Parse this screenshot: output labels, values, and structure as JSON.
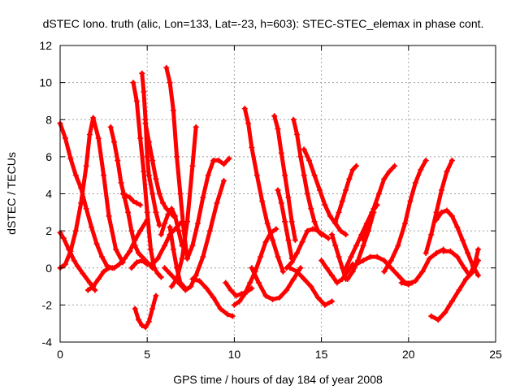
{
  "chart_data": {
    "type": "scatter",
    "title": "dSTEC Iono. truth (alic, Lon=133, Lat=-23, h=603): STEC-STEC_elemax in phase cont.",
    "xlabel": "GPS time / hours of day 184 of year 2008",
    "ylabel": "dSTEC  / TECUs",
    "xlim": [
      0,
      25
    ],
    "ylim": [
      -4,
      12
    ],
    "xticks": [
      0,
      5,
      10,
      15,
      20,
      25
    ],
    "yticks": [
      -4,
      -2,
      0,
      2,
      4,
      6,
      8,
      10,
      12
    ],
    "grid": true,
    "marker": "+",
    "color": "#ff0000",
    "series": [
      {
        "x": [
          0.0,
          0.3,
          0.6,
          0.9,
          1.2,
          1.5,
          1.8,
          2.1,
          2.4,
          2.7,
          3.0
        ],
        "y": [
          7.8,
          7.0,
          5.9,
          5.0,
          4.3,
          3.2,
          2.2,
          1.3,
          0.6,
          0.1,
          0.0
        ]
      },
      {
        "x": [
          0.0,
          0.2,
          0.5,
          0.8,
          1.0,
          1.3,
          1.7,
          2.0
        ],
        "y": [
          1.9,
          1.6,
          1.0,
          0.4,
          0.1,
          -0.3,
          -0.8,
          -1.2
        ]
      },
      {
        "x": [
          0.0,
          0.3,
          0.6,
          0.9,
          1.2,
          1.5,
          1.7,
          1.9,
          2.2,
          2.5,
          2.8,
          3.2,
          3.6
        ],
        "y": [
          0.0,
          0.2,
          0.9,
          2.0,
          3.5,
          5.5,
          7.2,
          8.1,
          7.0,
          5.0,
          2.8,
          1.0,
          0.3
        ]
      },
      {
        "x": [
          1.6,
          1.9,
          2.2,
          2.5,
          2.8,
          3.1,
          3.4,
          3.7,
          4.0,
          4.3,
          4.6,
          5.0
        ],
        "y": [
          -1.2,
          -1.0,
          -0.6,
          -0.2,
          0.0,
          0.0,
          0.2,
          0.5,
          0.9,
          1.5,
          2.0,
          2.6
        ]
      },
      {
        "x": [
          2.9,
          3.1,
          3.3,
          3.5,
          3.7,
          3.9,
          4.1,
          4.3,
          4.5,
          4.7,
          5.0,
          5.3
        ],
        "y": [
          7.6,
          6.8,
          5.8,
          4.6,
          3.8,
          3.0,
          2.0,
          1.2,
          0.8,
          0.6,
          0.3,
          0.0
        ]
      },
      {
        "x": [
          3.6,
          3.8,
          4.0,
          4.2,
          4.4,
          4.6
        ],
        "y": [
          4.0,
          3.9,
          3.8,
          3.6,
          3.5,
          3.4
        ]
      },
      {
        "x": [
          4.1,
          4.4,
          4.7,
          5.0,
          5.3,
          5.6,
          6.0,
          6.3,
          6.7,
          7.0
        ],
        "y": [
          0.0,
          0.3,
          0.4,
          0.2,
          0.2,
          0.5,
          1.2,
          1.8,
          2.2,
          2.5
        ]
      },
      {
        "x": [
          4.3,
          4.5,
          4.7,
          4.9,
          5.1,
          5.3,
          5.5
        ],
        "y": [
          -2.2,
          -2.8,
          -3.1,
          -3.2,
          -2.9,
          -2.2,
          -1.5
        ]
      },
      {
        "x": [
          4.2,
          4.4,
          4.6,
          4.8,
          5.0,
          5.2,
          5.4,
          5.6,
          5.8
        ],
        "y": [
          10.0,
          9.0,
          7.0,
          5.2,
          3.0,
          1.0,
          0.0,
          -0.3,
          -0.5
        ]
      },
      {
        "x": [
          4.7,
          4.8,
          4.9,
          5.0,
          5.1,
          5.3,
          5.5,
          5.7
        ],
        "y": [
          10.5,
          9.5,
          8.0,
          6.0,
          5.0,
          4.0,
          3.0,
          2.3
        ]
      },
      {
        "x": [
          4.9,
          5.1,
          5.3,
          5.5,
          5.7,
          5.9,
          6.1,
          6.3,
          6.5
        ],
        "y": [
          7.8,
          6.8,
          5.8,
          4.8,
          4.0,
          3.5,
          3.2,
          3.0,
          2.8
        ]
      },
      {
        "x": [
          6.1,
          6.3,
          6.5,
          6.7,
          6.9,
          7.1,
          7.3
        ],
        "y": [
          10.8,
          10.0,
          8.5,
          6.0,
          4.0,
          2.0,
          0.5
        ]
      },
      {
        "x": [
          5.8,
          6.0,
          6.2,
          6.4,
          6.6,
          6.8,
          7.0
        ],
        "y": [
          1.8,
          2.4,
          2.9,
          3.2,
          2.8,
          2.0,
          1.2
        ]
      },
      {
        "x": [
          6.3,
          6.5,
          6.7,
          6.9,
          7.1
        ],
        "y": [
          2.2,
          1.0,
          0.0,
          -0.8,
          -1.0
        ]
      },
      {
        "x": [
          6.4,
          6.7,
          7.0,
          7.3,
          7.6,
          7.8
        ],
        "y": [
          -1.0,
          -0.6,
          0.5,
          2.5,
          5.5,
          7.6
        ]
      },
      {
        "x": [
          6.0,
          6.3,
          6.6,
          6.9,
          7.2,
          7.5,
          7.8,
          8.2,
          8.6,
          9.0,
          9.4
        ],
        "y": [
          0.0,
          -0.3,
          -0.6,
          -0.9,
          -1.2,
          -1.0,
          -0.4,
          0.6,
          2.0,
          3.5,
          4.7
        ]
      },
      {
        "x": [
          7.3,
          7.6,
          7.9,
          8.2,
          8.5,
          8.8,
          9.1,
          9.4,
          9.7
        ],
        "y": [
          0.5,
          1.2,
          2.4,
          3.8,
          5.0,
          5.8,
          5.8,
          5.6,
          5.9
        ]
      },
      {
        "x": [
          7.6,
          8.0,
          8.4,
          8.8,
          9.2,
          9.6,
          9.9
        ],
        "y": [
          -0.6,
          -0.7,
          -1.1,
          -1.6,
          -2.2,
          -2.5,
          -2.6
        ]
      },
      {
        "x": [
          9.5,
          9.8,
          10.1,
          10.4,
          10.7,
          11.0
        ],
        "y": [
          -0.8,
          -1.2,
          -1.5,
          -1.4,
          -1.3,
          -1.1
        ]
      },
      {
        "x": [
          10.6,
          10.8,
          11.0,
          11.3,
          11.6,
          11.9,
          12.2,
          12.5,
          12.8
        ],
        "y": [
          8.6,
          7.8,
          6.5,
          5.0,
          3.6,
          2.4,
          1.5,
          0.6,
          -0.2
        ]
      },
      {
        "x": [
          10.0,
          10.3,
          10.6,
          10.9,
          11.2,
          11.5,
          11.8,
          12.1,
          12.4
        ],
        "y": [
          -2.0,
          -1.8,
          -1.4,
          -0.8,
          -0.2,
          0.6,
          1.4,
          1.9,
          2.1
        ]
      },
      {
        "x": [
          11.0,
          11.4,
          11.8,
          12.2,
          12.6,
          13.0,
          13.4,
          13.8
        ],
        "y": [
          0.0,
          -0.8,
          -1.5,
          -1.7,
          -1.6,
          -1.2,
          -0.6,
          0.0
        ]
      },
      {
        "x": [
          12.3,
          12.5,
          12.7,
          12.9,
          13.1,
          13.3,
          13.5
        ],
        "y": [
          8.2,
          7.5,
          6.2,
          5.0,
          3.8,
          2.5,
          1.5
        ]
      },
      {
        "x": [
          12.5,
          12.7,
          12.9,
          13.1,
          13.3
        ],
        "y": [
          4.2,
          3.5,
          2.5,
          1.5,
          0.5
        ]
      },
      {
        "x": [
          13.4,
          13.6,
          13.8,
          14.0,
          14.2,
          14.4,
          14.6,
          14.8,
          15.0
        ],
        "y": [
          8.0,
          7.2,
          6.0,
          5.0,
          4.0,
          3.2,
          2.5,
          2.0,
          1.8
        ]
      },
      {
        "x": [
          13.0,
          13.3,
          13.6,
          13.9,
          14.2,
          14.5,
          14.8,
          15.1,
          15.4
        ],
        "y": [
          0.0,
          0.3,
          0.8,
          1.4,
          2.0,
          2.1,
          2.0,
          1.8,
          1.6
        ]
      },
      {
        "x": [
          13.2,
          13.6,
          14.0,
          14.4,
          14.8,
          15.2,
          15.6
        ],
        "y": [
          0.0,
          -0.2,
          -0.6,
          -1.0,
          -1.6,
          -2.0,
          -1.8
        ]
      },
      {
        "x": [
          14.0,
          14.3,
          14.6,
          14.9,
          15.2,
          15.5,
          15.8,
          16.1,
          16.4
        ],
        "y": [
          6.4,
          5.8,
          5.0,
          4.2,
          3.4,
          2.8,
          2.4,
          2.0,
          1.8
        ]
      },
      {
        "x": [
          15.0,
          15.3,
          15.6,
          15.9,
          16.2,
          16.5,
          16.8
        ],
        "y": [
          0.4,
          0.0,
          -0.4,
          -0.8,
          -0.6,
          -0.2,
          0.2
        ]
      },
      {
        "x": [
          15.8,
          16.0,
          16.2,
          16.4,
          16.6,
          16.8,
          17.0
        ],
        "y": [
          2.5,
          3.0,
          3.6,
          4.2,
          4.8,
          5.3,
          5.5
        ]
      },
      {
        "x": [
          15.6,
          15.8,
          16.0,
          16.2,
          16.4
        ],
        "y": [
          1.8,
          1.2,
          0.6,
          0.0,
          -0.6
        ]
      },
      {
        "x": [
          16.4,
          16.7,
          17.0,
          17.3,
          17.6,
          17.9,
          18.2
        ],
        "y": [
          0.0,
          0.6,
          1.2,
          1.8,
          2.4,
          3.0,
          3.4
        ]
      },
      {
        "x": [
          16.5,
          16.8,
          17.1,
          17.4,
          17.7,
          18.0
        ],
        "y": [
          -0.6,
          -0.2,
          0.4,
          1.2,
          2.0,
          3.0
        ]
      },
      {
        "x": [
          17.4,
          17.7,
          18.0,
          18.3,
          18.6,
          18.9,
          19.2
        ],
        "y": [
          1.5,
          2.3,
          3.2,
          4.0,
          4.8,
          5.2,
          5.5
        ]
      },
      {
        "x": [
          17.0,
          17.4,
          17.8,
          18.2,
          18.6,
          19.0,
          19.4,
          19.8,
          20.2
        ],
        "y": [
          0.2,
          0.4,
          0.6,
          0.6,
          0.4,
          0.0,
          -0.4,
          -0.8,
          -0.8
        ]
      },
      {
        "x": [
          18.6,
          19.0,
          19.4,
          19.8,
          20.1,
          20.4,
          20.7,
          21.0
        ],
        "y": [
          -0.2,
          0.4,
          1.2,
          2.4,
          3.6,
          4.6,
          5.3,
          5.8
        ]
      },
      {
        "x": [
          19.6,
          20.0,
          20.4,
          20.8,
          21.2,
          21.6,
          22.0
        ],
        "y": [
          -0.8,
          -0.9,
          -0.7,
          -0.2,
          0.5,
          0.8,
          1.0
        ]
      },
      {
        "x": [
          21.0,
          21.3,
          21.6,
          21.9,
          22.2,
          22.5
        ],
        "y": [
          0.8,
          1.8,
          3.0,
          4.2,
          5.2,
          5.8
        ]
      },
      {
        "x": [
          21.3,
          21.7,
          22.1,
          22.5,
          22.9,
          23.3,
          23.7,
          24.0
        ],
        "y": [
          -2.6,
          -2.8,
          -2.4,
          -1.8,
          -1.2,
          -0.6,
          -0.2,
          0.4
        ]
      },
      {
        "x": [
          21.6,
          21.9,
          22.2,
          22.5,
          22.8,
          23.1,
          23.4,
          23.7,
          24.0
        ],
        "y": [
          2.6,
          3.0,
          3.1,
          2.8,
          2.2,
          1.5,
          0.8,
          0.1,
          -0.4
        ]
      },
      {
        "x": [
          22.0,
          22.4,
          22.8,
          23.2,
          23.5,
          23.8,
          24.0
        ],
        "y": [
          0.9,
          0.9,
          0.6,
          0.0,
          -0.4,
          0.2,
          1.0
        ]
      }
    ]
  }
}
